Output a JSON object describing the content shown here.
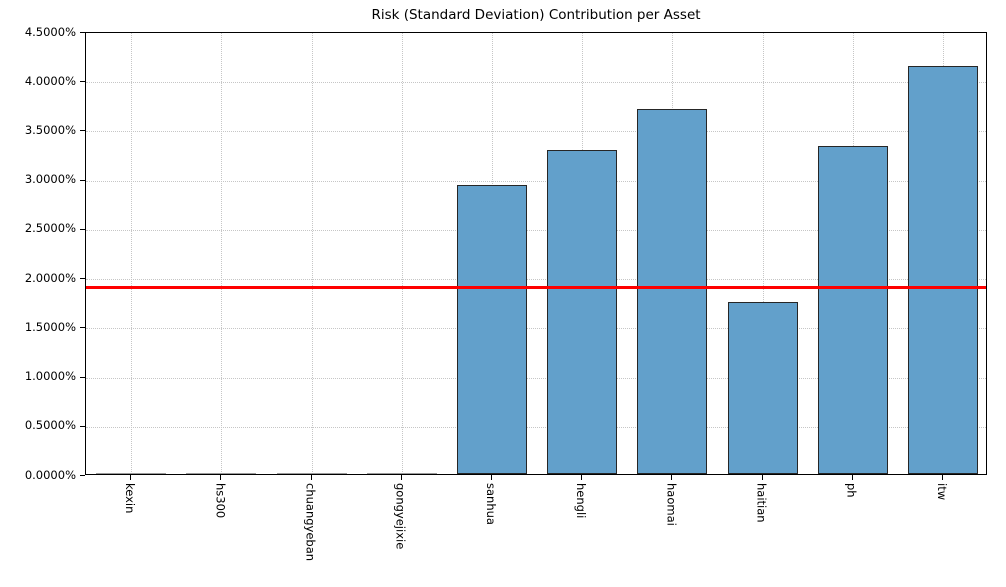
{
  "window": {
    "kind": "matplotlib-figure"
  },
  "colors": {
    "bar_fill": "#62A0CB",
    "bar_edge": "#262626",
    "zero_bar": "#9a9a9a",
    "mean_line": "#ff0000",
    "grid": "#c6c6c6",
    "axis": "#000000",
    "background": "#ffffff"
  },
  "chart_data": {
    "type": "bar",
    "title": "Risk (Standard Deviation) Contribution per Asset",
    "xlabel": "",
    "ylabel": "",
    "categories": [
      "kexin",
      "hs300",
      "chuangyeban",
      "gongyejixie",
      "sanhua",
      "hengli",
      "haomai",
      "haitian",
      "ph",
      "itw"
    ],
    "values": [
      0.0,
      0.0,
      0.0,
      0.0,
      2.94,
      3.29,
      3.71,
      1.75,
      3.33,
      4.14
    ],
    "unit": "%",
    "ylim": [
      0,
      4.5
    ],
    "ytick_step": 0.5,
    "ytick_labels": [
      "0.0000%",
      "0.5000%",
      "1.0000%",
      "1.5000%",
      "2.0000%",
      "2.5000%",
      "3.0000%",
      "3.5000%",
      "4.0000%",
      "4.5000%"
    ],
    "mean_line_value": 1.916,
    "grid": true,
    "grid_style": "dotted",
    "legend": false,
    "bar_width_ratio": 0.78,
    "xtick_rotation": 90
  }
}
